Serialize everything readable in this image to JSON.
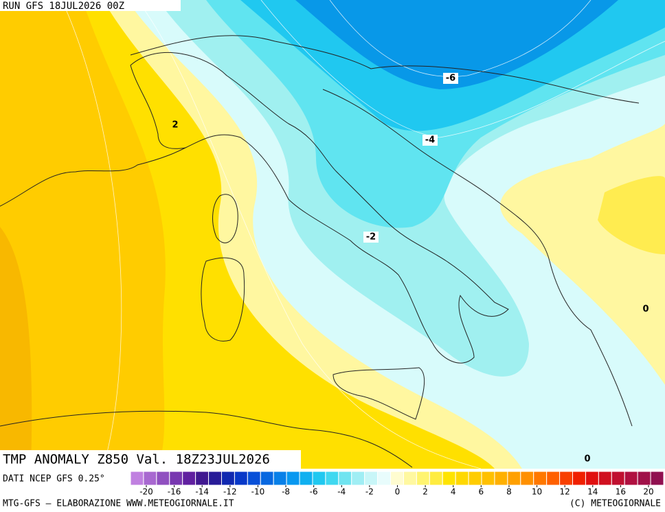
{
  "header": {
    "run": "RUN GFS 18JUL2026 00Z"
  },
  "contour_labels": [
    "-6",
    "-4",
    "-2",
    "2",
    "0",
    "0"
  ],
  "title": "TMP ANOMALY Z850 Val. 18Z23JUL2026",
  "source": "DATI NCEP GFS 0.25°",
  "colorbar": {
    "colors": [
      "#c080e0",
      "#a868d0",
      "#9050c0",
      "#7838b0",
      "#6020a0",
      "#401890",
      "#281c98",
      "#1028b0",
      "#0838c8",
      "#0850d8",
      "#0868e0",
      "#0880e8",
      "#0898f0",
      "#10b0f0",
      "#20c8f0",
      "#40d8f0",
      "#70e4f0",
      "#a0eef4",
      "#c8f6f8",
      "#e8fcfc",
      "#fffcd0",
      "#fff8a0",
      "#fff470",
      "#ffec40",
      "#ffe400",
      "#ffd800",
      "#ffcc00",
      "#ffc000",
      "#ffb000",
      "#ffa000",
      "#ff9000",
      "#ff7800",
      "#ff6000",
      "#f84000",
      "#f02000",
      "#e01010",
      "#d01020",
      "#c01030",
      "#b01040",
      "#a01048",
      "#901050"
    ],
    "ticks": [
      -20,
      -16,
      -14,
      -12,
      -10,
      -8,
      -6,
      -4,
      -2,
      0,
      2,
      4,
      6,
      8,
      10,
      12,
      14,
      16,
      20
    ]
  },
  "footer": {
    "left": "MTG-GFS — ELABORAZIONE WWW.METEOGIORNALE.IT",
    "right": "(C) METEOGIORNALE"
  }
}
